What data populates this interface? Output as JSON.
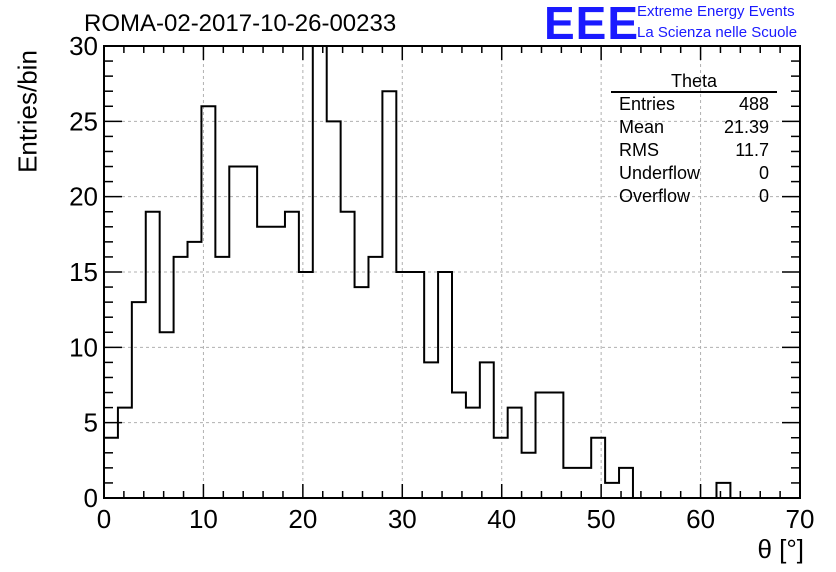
{
  "header": {
    "title": "ROMA-02-2017-10-26-00233",
    "logo_text": "EEE",
    "logo_line1": "Extreme Energy Events",
    "logo_line2": "La Scienza nelle Scuole"
  },
  "stats_box": {
    "title": "Theta",
    "rows": [
      {
        "label": "Entries",
        "value": "488"
      },
      {
        "label": "Mean",
        "value": "21.39"
      },
      {
        "label": "RMS",
        "value": "11.7"
      },
      {
        "label": "Underflow",
        "value": "0"
      },
      {
        "label": "Overflow",
        "value": "0"
      }
    ]
  },
  "chart_data": {
    "type": "histogram",
    "title": "ROMA-02-2017-10-26-00233",
    "xlabel": "θ [°]",
    "ylabel": "Entries/bin",
    "xlim": [
      0,
      70
    ],
    "ylim": [
      0,
      30
    ],
    "bin_width": 1.4,
    "bin_edges_start": 0,
    "values": [
      4,
      6,
      13,
      19,
      11,
      16,
      17,
      26,
      16,
      22,
      22,
      18,
      18,
      19,
      15,
      30,
      25,
      19,
      14,
      16,
      27,
      15,
      15,
      9,
      15,
      7,
      6,
      9,
      4,
      6,
      3,
      7,
      7,
      2,
      2,
      4,
      1,
      2,
      0,
      0,
      0,
      0,
      0,
      0,
      1,
      0,
      0,
      0,
      0,
      0
    ],
    "x_ticks": [
      0,
      10,
      20,
      30,
      40,
      50,
      60,
      70
    ],
    "y_ticks": [
      0,
      5,
      10,
      15,
      20,
      25,
      30
    ],
    "grid": true,
    "line_color": "#000000",
    "grid_color": "#b0b0b0"
  }
}
